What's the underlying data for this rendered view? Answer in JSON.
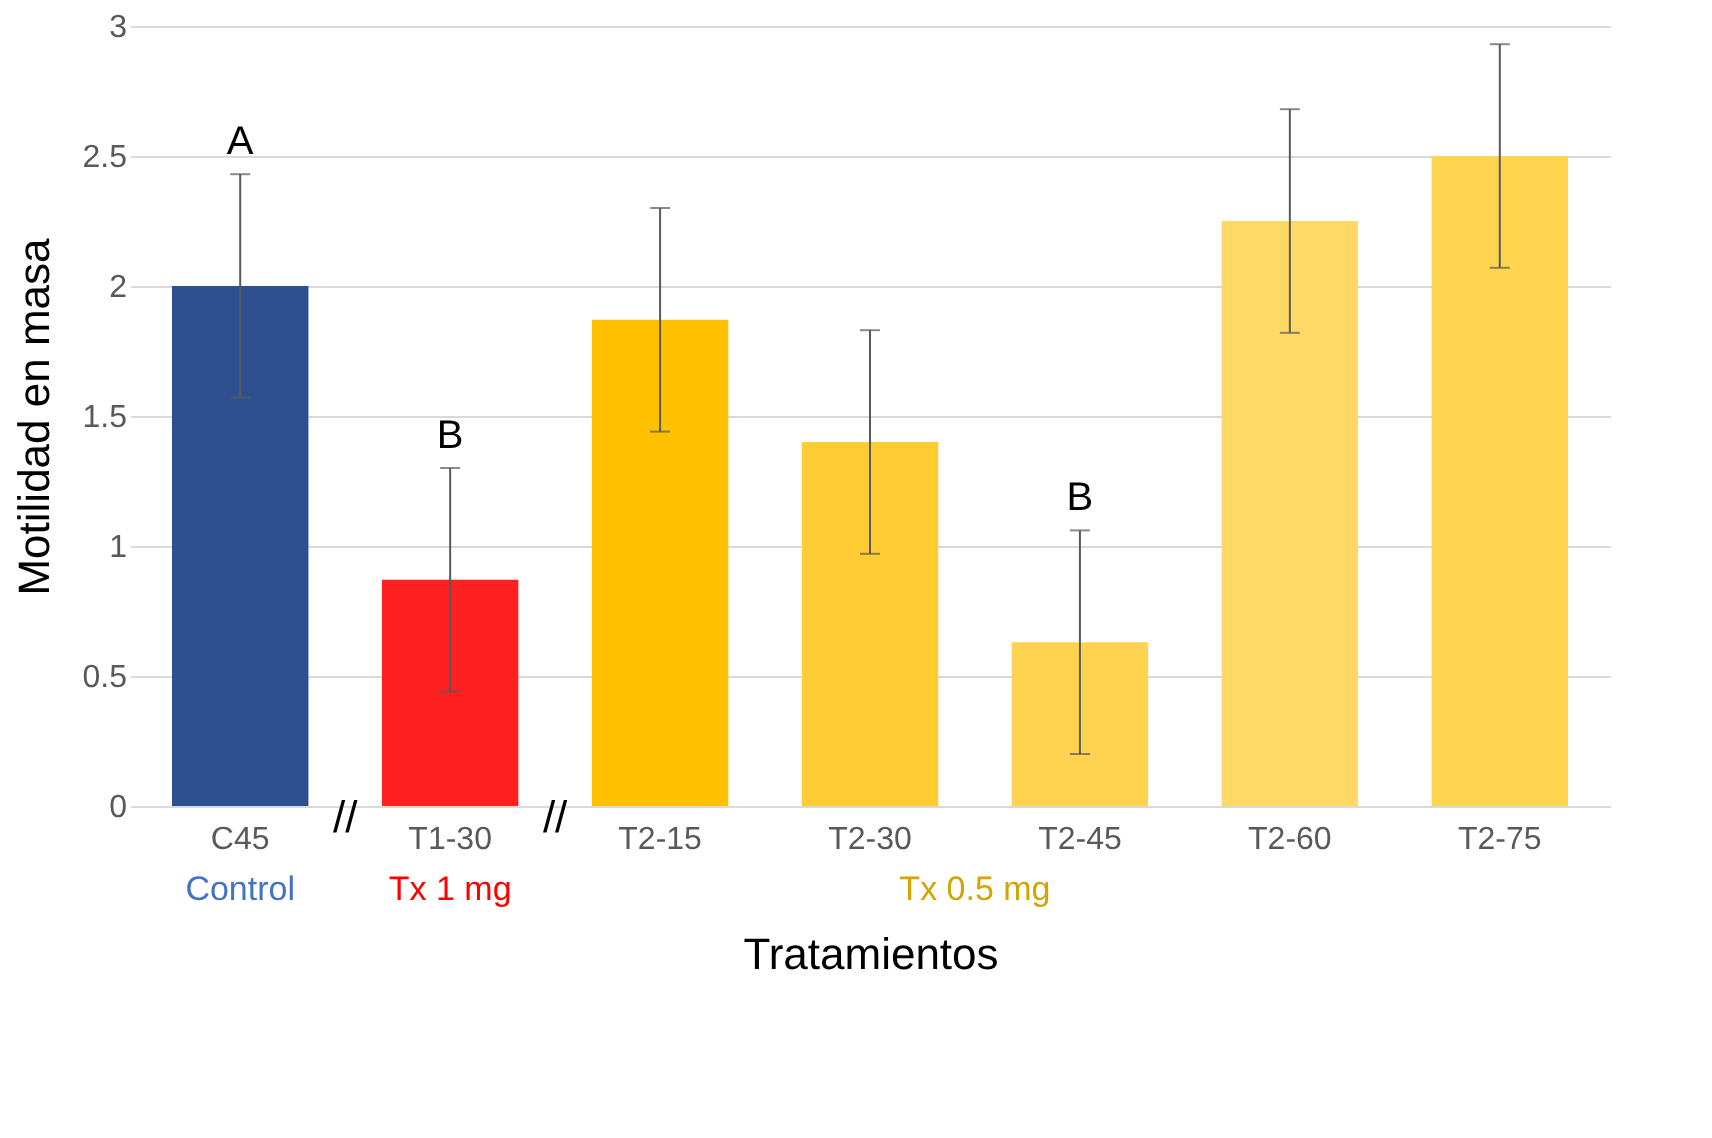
{
  "chart_data": {
    "type": "bar",
    "xlabel": "Tratamientos",
    "ylabel": "Motilidad  en masa",
    "categories": [
      "C45",
      "T1-30",
      "T2-15",
      "T2-30",
      "T2-45",
      "T2-60",
      "T2-75"
    ],
    "values": [
      2.0,
      0.87,
      1.87,
      1.4,
      0.63,
      2.25,
      2.5
    ],
    "errors": [
      0.43,
      0.43,
      0.43,
      0.43,
      0.43,
      0.43,
      0.43
    ],
    "colors": [
      "#2e5090",
      "#ff2020",
      "#ffc000",
      "#ffcc33",
      "#ffd34f",
      "#ffd966",
      "#ffd54f"
    ],
    "ylim": [
      0,
      3
    ],
    "yticks": [
      0,
      0.5,
      1,
      1.5,
      2,
      2.5,
      3
    ],
    "grid": "y",
    "annotations": [
      "A",
      "B",
      "B",
      "Control",
      "Tx 1 mg",
      "Tx 0.5 mg",
      "//",
      "//"
    ]
  }
}
